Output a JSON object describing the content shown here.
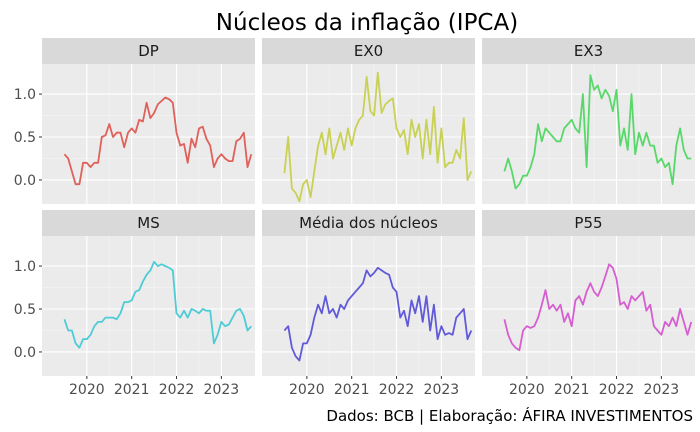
{
  "chart_data": {
    "type": "line",
    "title": "Núcleos da inflação (IPCA)",
    "caption": "Dados: BCB | Elaboração: ÁFIRA INVESTIMENTOS",
    "xlabel": "",
    "ylabel": "",
    "x_ticks": [
      2020,
      2021,
      2022,
      2023
    ],
    "y_ticks": [
      0.0,
      0.5,
      1.0
    ],
    "y_tick_labels": [
      "0.0",
      "0.5",
      "1.0"
    ],
    "xlim": [
      2019.0,
      2023.75
    ],
    "ylim": [
      -0.28,
      1.35
    ],
    "grid": true,
    "legend": "none",
    "facets": [
      {
        "name": "DP",
        "color": "#E0605A",
        "values": [
          0.3,
          0.25,
          0.1,
          -0.05,
          -0.05,
          0.2,
          0.2,
          0.15,
          0.2,
          0.2,
          0.5,
          0.52,
          0.65,
          0.5,
          0.55,
          0.55,
          0.38,
          0.55,
          0.6,
          0.55,
          0.7,
          0.68,
          0.9,
          0.72,
          0.78,
          0.88,
          0.92,
          0.96,
          0.94,
          0.9,
          0.55,
          0.4,
          0.42,
          0.2,
          0.48,
          0.38,
          0.6,
          0.62,
          0.48,
          0.4,
          0.15,
          0.25,
          0.3,
          0.25,
          0.22,
          0.22,
          0.45,
          0.48,
          0.55,
          0.15,
          0.3
        ]
      },
      {
        "name": "EX0",
        "color": "#C9D154",
        "values": [
          0.08,
          0.5,
          -0.1,
          -0.15,
          -0.25,
          -0.05,
          0.0,
          -0.2,
          0.1,
          0.4,
          0.55,
          0.3,
          0.6,
          0.25,
          0.4,
          0.55,
          0.35,
          0.6,
          0.4,
          0.6,
          0.7,
          0.75,
          1.2,
          0.8,
          0.75,
          1.25,
          0.78,
          0.88,
          0.92,
          0.95,
          0.6,
          0.5,
          0.58,
          0.3,
          0.7,
          0.5,
          0.65,
          0.25,
          0.7,
          0.3,
          0.85,
          0.2,
          0.6,
          0.15,
          0.2,
          0.2,
          0.35,
          0.25,
          0.72,
          0.0,
          0.1
        ]
      },
      {
        "name": "EX3",
        "color": "#58D86A",
        "values": [
          0.1,
          0.25,
          0.1,
          -0.1,
          -0.05,
          0.05,
          0.05,
          0.15,
          0.3,
          0.65,
          0.45,
          0.6,
          0.55,
          0.5,
          0.45,
          0.45,
          0.6,
          0.65,
          0.7,
          0.6,
          0.55,
          1.0,
          0.15,
          1.22,
          1.05,
          1.1,
          0.95,
          1.05,
          0.98,
          0.8,
          1.05,
          0.4,
          0.6,
          0.35,
          1.0,
          0.3,
          0.55,
          0.4,
          0.55,
          0.4,
          0.4,
          0.2,
          0.25,
          0.15,
          0.2,
          -0.05,
          0.4,
          0.6,
          0.35,
          0.25,
          0.25
        ]
      },
      {
        "name": "MS",
        "color": "#4DCCD6",
        "values": [
          0.38,
          0.25,
          0.25,
          0.1,
          0.05,
          0.15,
          0.15,
          0.2,
          0.3,
          0.35,
          0.35,
          0.4,
          0.4,
          0.4,
          0.38,
          0.45,
          0.58,
          0.58,
          0.6,
          0.7,
          0.72,
          0.82,
          0.9,
          0.95,
          1.05,
          1.0,
          1.02,
          1.0,
          0.98,
          0.95,
          0.45,
          0.4,
          0.48,
          0.4,
          0.5,
          0.48,
          0.45,
          0.5,
          0.48,
          0.48,
          0.1,
          0.2,
          0.35,
          0.3,
          0.32,
          0.4,
          0.48,
          0.5,
          0.42,
          0.25,
          0.3
        ]
      },
      {
        "name": "Média dos núcleos",
        "color": "#6059DA",
        "values": [
          0.25,
          0.3,
          0.05,
          -0.05,
          -0.1,
          0.1,
          0.1,
          0.2,
          0.4,
          0.55,
          0.45,
          0.65,
          0.45,
          0.5,
          0.4,
          0.55,
          0.5,
          0.6,
          0.65,
          0.7,
          0.75,
          0.8,
          0.95,
          0.88,
          0.92,
          0.98,
          0.95,
          0.92,
          0.9,
          0.75,
          0.7,
          0.4,
          0.48,
          0.3,
          0.6,
          0.45,
          0.65,
          0.35,
          0.65,
          0.25,
          0.55,
          0.15,
          0.3,
          0.2,
          0.22,
          0.2,
          0.4,
          0.45,
          0.5,
          0.15,
          0.25
        ]
      },
      {
        "name": "P55",
        "color": "#D65ED0",
        "values": [
          0.38,
          0.2,
          0.1,
          0.05,
          0.02,
          0.25,
          0.3,
          0.28,
          0.3,
          0.4,
          0.55,
          0.72,
          0.5,
          0.55,
          0.48,
          0.55,
          0.35,
          0.45,
          0.3,
          0.6,
          0.65,
          0.55,
          0.7,
          0.8,
          0.7,
          0.65,
          0.75,
          0.88,
          1.02,
          0.98,
          0.85,
          0.55,
          0.58,
          0.5,
          0.65,
          0.6,
          0.65,
          0.7,
          0.48,
          0.55,
          0.3,
          0.25,
          0.2,
          0.35,
          0.3,
          0.4,
          0.3,
          0.5,
          0.35,
          0.2,
          0.35
        ]
      }
    ]
  }
}
